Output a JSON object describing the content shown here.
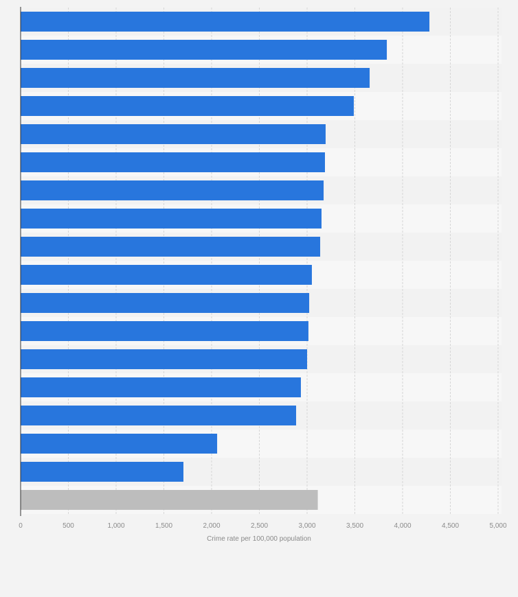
{
  "chart_data": {
    "type": "bar",
    "orientation": "horizontal",
    "title": "",
    "xlabel": "Crime rate per 100,000 population",
    "ylabel": "",
    "xlim": [
      0,
      5000
    ],
    "xticks": [
      0,
      500,
      1000,
      1500,
      2000,
      2500,
      3000,
      3500,
      4000,
      4500,
      5000
    ],
    "xtick_labels": [
      "0",
      "500",
      "1,000",
      "1,500",
      "2,000",
      "2,500",
      "3,000",
      "3,500",
      "4,000",
      "4,500",
      "5,000"
    ],
    "grid": true,
    "values": [
      4281,
      3835,
      3655,
      3489,
      3194,
      3187,
      3173,
      3151,
      3137,
      3050,
      3022,
      3014,
      3000,
      2935,
      2885,
      2058,
      1705,
      3112
    ],
    "colors": [
      "#2876dd",
      "#2876dd",
      "#2876dd",
      "#2876dd",
      "#2876dd",
      "#2876dd",
      "#2876dd",
      "#2876dd",
      "#2876dd",
      "#2876dd",
      "#2876dd",
      "#2876dd",
      "#2876dd",
      "#2876dd",
      "#2876dd",
      "#2876dd",
      "#2876dd",
      "#bdbdbd"
    ]
  }
}
